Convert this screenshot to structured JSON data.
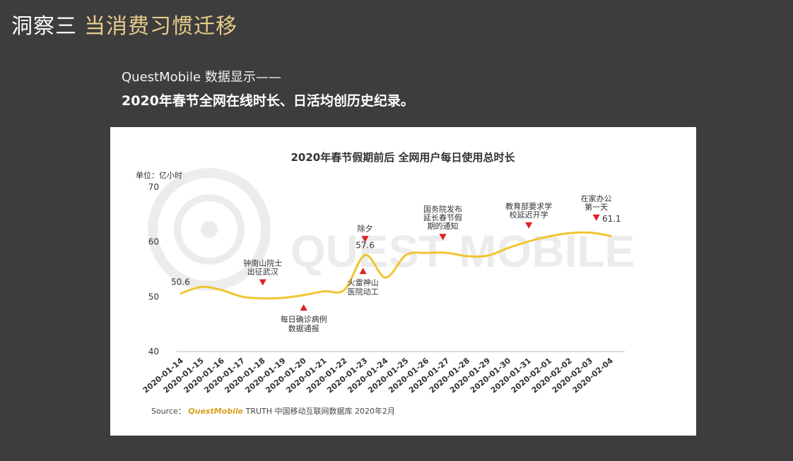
{
  "slide": {
    "title_part1": "洞察三",
    "title_part2": "当消费习惯迁移",
    "subtitle": "QuestMobile 数据显示——",
    "headline": "2020年春节全网在线时长、日活均创历史纪录。"
  },
  "source": {
    "prefix": "Source：",
    "brand": "QuestMobile",
    "rest": "TRUTH 中国移动互联网数据库 2020年2月"
  },
  "watermark": "QUEST MOBILE",
  "colors": {
    "line": "#f2c531",
    "marker": "#e02020",
    "title_accent": "#e8cc8a",
    "background": "#3d3d3d"
  },
  "chart_data": {
    "type": "line",
    "title": "2020年春节假期前后 全网用户每日使用总时长",
    "unit_label": "单位：亿小时",
    "ylim": [
      40,
      70
    ],
    "yticks": [
      40,
      50,
      60,
      70
    ],
    "grid": false,
    "categories": [
      "2020-01-14",
      "2020-01-15",
      "2020-01-16",
      "2020-01-17",
      "2020-01-18",
      "2020-01-19",
      "2020-01-20",
      "2020-01-21",
      "2020-01-22",
      "2020-01-23",
      "2020-01-24",
      "2020-01-25",
      "2020-01-26",
      "2020-01-27",
      "2020-01-28",
      "2020-01-29",
      "2020-01-30",
      "2020-01-31",
      "2020-02-01",
      "2020-02-02",
      "2020-02-03",
      "2020-02-04"
    ],
    "values": [
      50.6,
      51.8,
      51.2,
      50.0,
      49.7,
      49.8,
      50.3,
      51.0,
      51.3,
      57.6,
      53.5,
      57.6,
      58.0,
      58.0,
      57.4,
      57.5,
      58.9,
      60.1,
      61.0,
      61.6,
      61.7,
      61.1
    ],
    "data_labels": [
      {
        "index": 0,
        "text": "50.6"
      },
      {
        "index": 9,
        "text": "57.6"
      },
      {
        "index": 21,
        "text": "61.1"
      }
    ],
    "annotations": [
      {
        "index": 4,
        "lines": [
          "钟南山院士",
          "出征武汉"
        ],
        "position": "above"
      },
      {
        "index": 6,
        "lines": [
          "每日确诊病例",
          "数据通报"
        ],
        "position": "below"
      },
      {
        "index": 9,
        "lines": [
          "除夕"
        ],
        "position": "above"
      },
      {
        "index": 8.9,
        "lines": [
          "火雷神山",
          "医院动工"
        ],
        "position": "below"
      },
      {
        "index": 12.8,
        "lines": [
          "国务院发布",
          "延长春节假",
          "期的通知"
        ],
        "position": "above"
      },
      {
        "index": 17,
        "lines": [
          "教育部要求学",
          "校延迟开学"
        ],
        "position": "above"
      },
      {
        "index": 20.3,
        "lines": [
          "在家办公",
          "第一天"
        ],
        "position": "above"
      }
    ]
  }
}
